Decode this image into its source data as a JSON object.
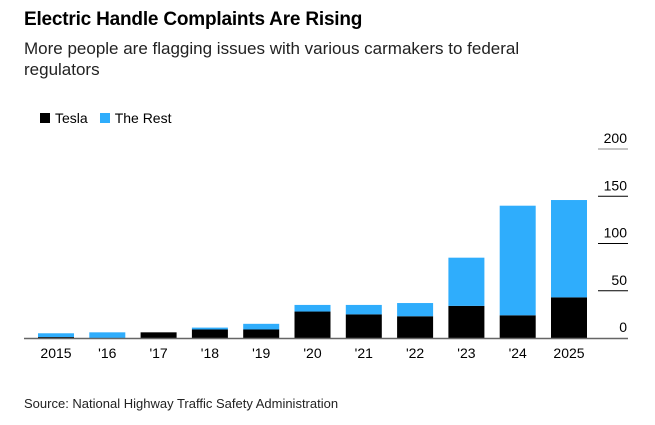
{
  "title": "Electric Handle Complaints Are Rising",
  "subtitle": "More people are flagging issues with various carmakers to federal regulators",
  "source": "Source: National Highway Traffic Safety Administration",
  "colors": {
    "tesla": "#000000",
    "rest": "#2fadfc"
  },
  "chart_data": {
    "type": "bar",
    "stacked": true,
    "title": "Electric Handle Complaints Are Rising",
    "subtitle": "More people are flagging issues with various carmakers to federal regulators",
    "xlabel": "",
    "ylabel": "",
    "categories": [
      "2015",
      "'16",
      "'17",
      "'18",
      "'19",
      "'20",
      "'21",
      "'22",
      "'23",
      "'24",
      "2025"
    ],
    "series": [
      {
        "name": "Tesla",
        "values": [
          1,
          0,
          6,
          9,
          9,
          28,
          25,
          23,
          34,
          24,
          43
        ]
      },
      {
        "name": "The Rest",
        "values": [
          4,
          6,
          0,
          2,
          6,
          7,
          10,
          14,
          51,
          116,
          103
        ]
      }
    ],
    "ylim": [
      0,
      200
    ],
    "yticks": [
      0,
      50,
      100,
      150,
      200
    ],
    "grid": true,
    "legend": "top-left",
    "y_axis_side": "right"
  }
}
